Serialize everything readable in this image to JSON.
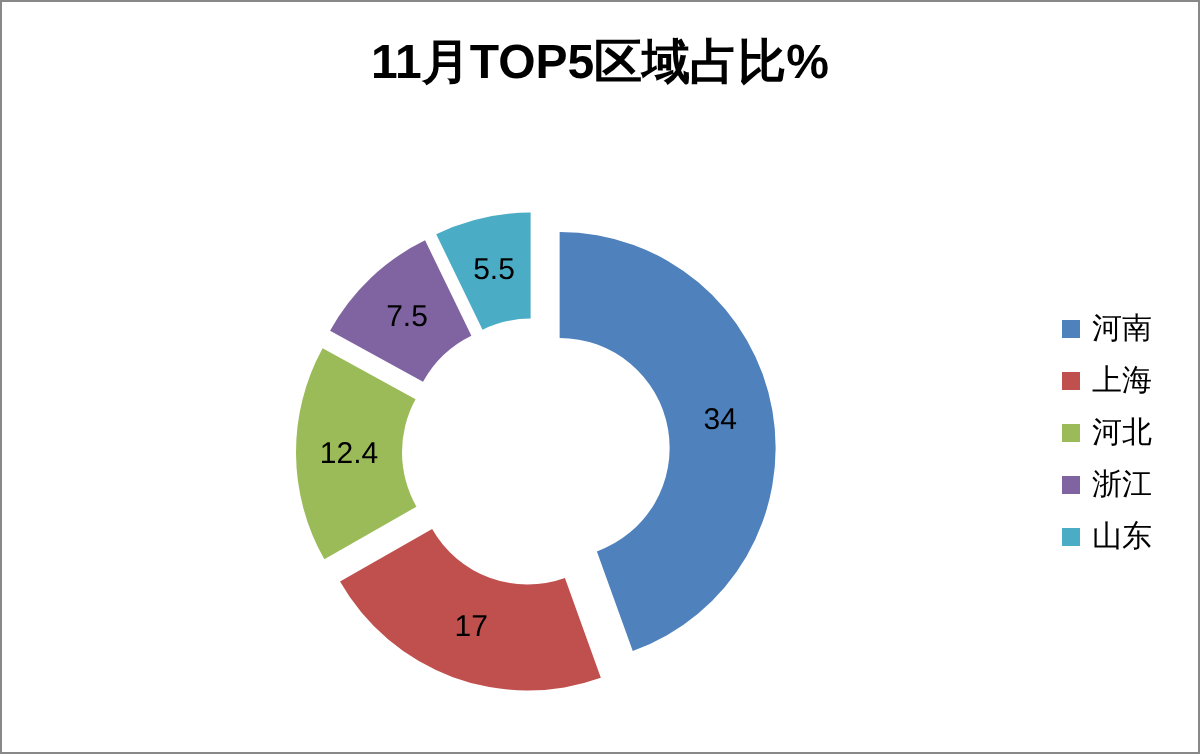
{
  "chart_data": {
    "type": "donut",
    "title": "11月TOP5区域占比%",
    "categories": [
      "河南",
      "上海",
      "河北",
      "浙江",
      "山东"
    ],
    "values": [
      34,
      17,
      12.4,
      7.5,
      5.5
    ],
    "colors": [
      "#4f81bd",
      "#c0504d",
      "#9bbb59",
      "#8064a2",
      "#4bacc6"
    ],
    "data_labels": true,
    "legend": "right"
  }
}
